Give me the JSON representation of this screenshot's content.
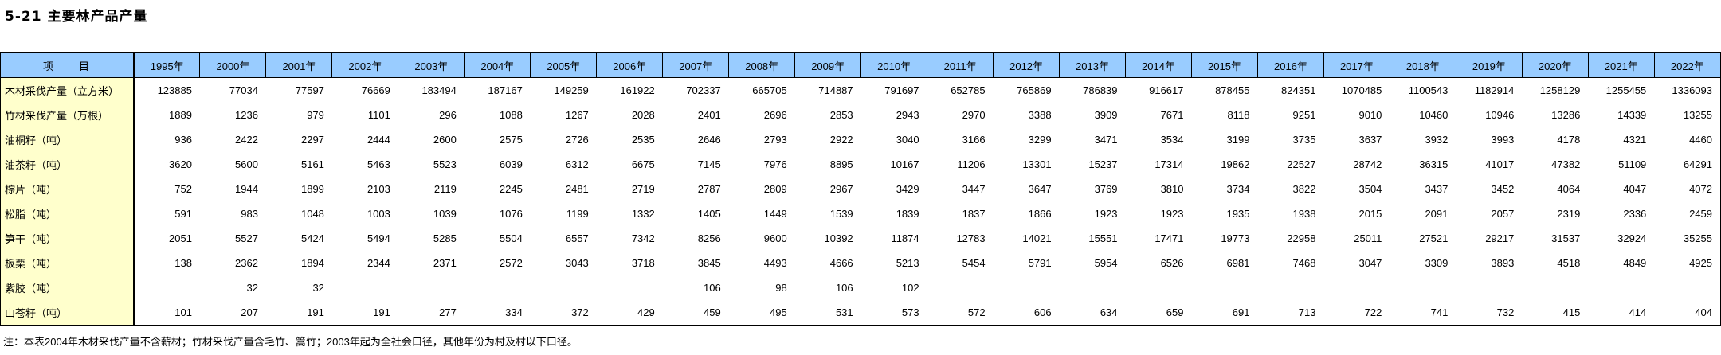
{
  "title": "5-21  主要林产品产量",
  "table": {
    "item_header": "项　　目",
    "years": [
      "1995年",
      "2000年",
      "2001年",
      "2002年",
      "2003年",
      "2004年",
      "2005年",
      "2006年",
      "2007年",
      "2008年",
      "2009年",
      "2010年",
      "2011年",
      "2012年",
      "2013年",
      "2014年",
      "2015年",
      "2016年",
      "2017年",
      "2018年",
      "2019年",
      "2020年",
      "2021年",
      "2022年"
    ],
    "rows": [
      {
        "label": "木材采伐产量（立方米）",
        "values": [
          "123885",
          "77034",
          "77597",
          "76669",
          "183494",
          "187167",
          "149259",
          "161922",
          "702337",
          "665705",
          "714887",
          "791697",
          "652785",
          "765869",
          "786839",
          "916617",
          "878455",
          "824351",
          "1070485",
          "1100543",
          "1182914",
          "1258129",
          "1255455",
          "1336093"
        ]
      },
      {
        "label": "竹材采伐产量（万根）",
        "values": [
          "1889",
          "1236",
          "979",
          "1101",
          "296",
          "1088",
          "1267",
          "2028",
          "2401",
          "2696",
          "2853",
          "2943",
          "2970",
          "3388",
          "3909",
          "7671",
          "8118",
          "9251",
          "9010",
          "10460",
          "10946",
          "13286",
          "14339",
          "13255"
        ]
      },
      {
        "label": "油桐籽（吨）",
        "values": [
          "936",
          "2422",
          "2297",
          "2444",
          "2600",
          "2575",
          "2726",
          "2535",
          "2646",
          "2793",
          "2922",
          "3040",
          "3166",
          "3299",
          "3471",
          "3534",
          "3199",
          "3735",
          "3637",
          "3932",
          "3993",
          "4178",
          "4321",
          "4460"
        ]
      },
      {
        "label": "油茶籽（吨）",
        "values": [
          "3620",
          "5600",
          "5161",
          "5463",
          "5523",
          "6039",
          "6312",
          "6675",
          "7145",
          "7976",
          "8895",
          "10167",
          "11206",
          "13301",
          "15237",
          "17314",
          "19862",
          "22527",
          "28742",
          "36315",
          "41017",
          "47382",
          "51109",
          "64291"
        ]
      },
      {
        "label": "棕片（吨）",
        "values": [
          "752",
          "1944",
          "1899",
          "2103",
          "2119",
          "2245",
          "2481",
          "2719",
          "2787",
          "2809",
          "2967",
          "3429",
          "3447",
          "3647",
          "3769",
          "3810",
          "3734",
          "3822",
          "3504",
          "3437",
          "3452",
          "4064",
          "4047",
          "4072"
        ]
      },
      {
        "label": "松脂（吨）",
        "values": [
          "591",
          "983",
          "1048",
          "1003",
          "1039",
          "1076",
          "1199",
          "1332",
          "1405",
          "1449",
          "1539",
          "1839",
          "1837",
          "1866",
          "1923",
          "1923",
          "1935",
          "1938",
          "2015",
          "2091",
          "2057",
          "2319",
          "2336",
          "2459"
        ]
      },
      {
        "label": "笋干（吨）",
        "values": [
          "2051",
          "5527",
          "5424",
          "5494",
          "5285",
          "5504",
          "6557",
          "7342",
          "8256",
          "9600",
          "10392",
          "11874",
          "12783",
          "14021",
          "15551",
          "17471",
          "19773",
          "22958",
          "25011",
          "27521",
          "29217",
          "31537",
          "32924",
          "35255"
        ]
      },
      {
        "label": "板栗（吨）",
        "values": [
          "138",
          "2362",
          "1894",
          "2344",
          "2371",
          "2572",
          "3043",
          "3718",
          "3845",
          "4493",
          "4666",
          "5213",
          "5454",
          "5791",
          "5954",
          "6526",
          "6981",
          "7468",
          "3047",
          "3309",
          "3893",
          "4518",
          "4849",
          "4925"
        ]
      },
      {
        "label": "紫胶（吨）",
        "values": [
          "",
          "32",
          "32",
          "",
          "",
          "",
          "",
          "",
          "106",
          "98",
          "106",
          "102",
          "",
          "",
          "",
          "",
          "",
          "",
          "",
          "",
          "",
          "",
          "",
          ""
        ]
      },
      {
        "label": "山苍籽（吨）",
        "values": [
          "101",
          "207",
          "191",
          "191",
          "277",
          "334",
          "372",
          "429",
          "459",
          "495",
          "531",
          "573",
          "572",
          "606",
          "634",
          "659",
          "691",
          "713",
          "722",
          "741",
          "732",
          "415",
          "414",
          "404"
        ]
      }
    ]
  },
  "note": "注：本表2004年木材采伐产量不含薪材；竹材采伐产量含毛竹、篙竹；2003年起为全社会口径，其他年份为村及村以下口径。",
  "colors": {
    "header_bg": "#99CCFF",
    "label_bg": "#FFFFCC",
    "border": "#000000"
  }
}
